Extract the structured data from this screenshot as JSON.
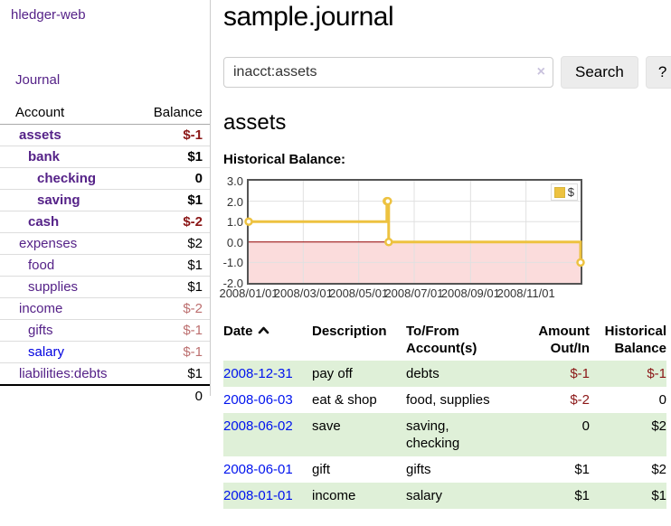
{
  "app": {
    "brand": "hledger-web",
    "nav_journal": "Journal"
  },
  "colors": {
    "link_purple": "#552288",
    "link_blue": "#0000e0",
    "negative_strong": "#8b1717",
    "negative_soft": "#bc6f6f",
    "stripe_green": "#dff0d8",
    "series_gold": "#edc240"
  },
  "sidebar": {
    "columns": {
      "account": "Account",
      "balance": "Balance"
    },
    "accounts": [
      {
        "name": "assets",
        "indent": 1,
        "bold": true,
        "balance": "$-1",
        "balance_style": "neg-strong",
        "link": "purple"
      },
      {
        "name": "bank",
        "indent": 2,
        "bold": true,
        "balance": "$1",
        "balance_style": "pos",
        "link": "purple"
      },
      {
        "name": "checking",
        "indent": 3,
        "bold": true,
        "balance": "0",
        "balance_style": "pos",
        "link": "purple"
      },
      {
        "name": "saving",
        "indent": 3,
        "bold": true,
        "balance": "$1",
        "balance_style": "pos",
        "link": "purple"
      },
      {
        "name": "cash",
        "indent": 2,
        "bold": true,
        "balance": "$-2",
        "balance_style": "neg-strong",
        "link": "purple"
      },
      {
        "name": "expenses",
        "indent": 1,
        "bold": false,
        "balance": "$2",
        "balance_style": "pos",
        "link": "purple"
      },
      {
        "name": "food",
        "indent": 2,
        "bold": false,
        "balance": "$1",
        "balance_style": "pos",
        "link": "purple"
      },
      {
        "name": "supplies",
        "indent": 2,
        "bold": false,
        "balance": "$1",
        "balance_style": "pos",
        "link": "purple"
      },
      {
        "name": "income",
        "indent": 1,
        "bold": false,
        "balance": "$-2",
        "balance_style": "neg-soft",
        "link": "purple"
      },
      {
        "name": "gifts",
        "indent": 2,
        "bold": false,
        "balance": "$-1",
        "balance_style": "neg-soft",
        "link": "purple"
      },
      {
        "name": "salary",
        "indent": 2,
        "bold": false,
        "balance": "$-1",
        "balance_style": "neg-soft",
        "link": "blue"
      },
      {
        "name": "liabilities:debts",
        "indent": 1,
        "bold": false,
        "balance": "$1",
        "balance_style": "pos",
        "link": "purple"
      }
    ],
    "total": "0"
  },
  "header": {
    "title": "sample.journal"
  },
  "search": {
    "value": "inacct:assets",
    "clear_icon": "×",
    "button": "Search",
    "help_button": "?"
  },
  "account_page": {
    "heading": "assets",
    "chart_label": "Historical Balance:"
  },
  "chart_data": {
    "type": "line",
    "title": "Historical Balance:",
    "step": true,
    "series": [
      {
        "name": "$",
        "color": "#edc240",
        "points": [
          [
            "2008-01-01",
            1
          ],
          [
            "2008-06-01",
            2
          ],
          [
            "2008-06-02",
            2
          ],
          [
            "2008-06-03",
            0
          ],
          [
            "2008-12-31",
            -1
          ]
        ]
      }
    ],
    "xlim": [
      "2008-01-01",
      "2008-12-31"
    ],
    "ylim": [
      -2,
      3
    ],
    "x_ticks": [
      "2008/01/01",
      "2008/03/01",
      "2008/05/01",
      "2008/07/01",
      "2008/09/01",
      "2008/11/01"
    ],
    "y_ticks": [
      "3.0",
      "2.0",
      "1.0",
      "0.0",
      "-1.0",
      "-2.0"
    ],
    "grid": true,
    "negative_region_color": "#fbdcdc",
    "zero_line_color": "#990000",
    "legend": {
      "label": "$",
      "position": "top-right"
    }
  },
  "register": {
    "columns": [
      "Date",
      "Description",
      "To/From Account(s)",
      "Amount Out/In",
      "Historical Balance"
    ],
    "sort": {
      "column": "Date",
      "direction": "ascending"
    },
    "rows": [
      {
        "date": "2008-12-31",
        "description": "pay off",
        "accounts": [
          "debts"
        ],
        "amount": "$-1",
        "amount_neg": true,
        "balance": "$-1",
        "balance_neg": true
      },
      {
        "date": "2008-06-03",
        "description": "eat & shop",
        "accounts": [
          "food, supplies"
        ],
        "amount": "$-2",
        "amount_neg": true,
        "balance": "0",
        "balance_neg": false
      },
      {
        "date": "2008-06-02",
        "description": "save",
        "accounts": [
          "saving,",
          "checking"
        ],
        "amount": "0",
        "amount_neg": false,
        "balance": "$2",
        "balance_neg": false
      },
      {
        "date": "2008-06-01",
        "description": "gift",
        "accounts": [
          "gifts"
        ],
        "amount": "$1",
        "amount_neg": false,
        "balance": "$2",
        "balance_neg": false
      },
      {
        "date": "2008-01-01",
        "description": "income",
        "accounts": [
          "salary"
        ],
        "amount": "$1",
        "amount_neg": false,
        "balance": "$1",
        "balance_neg": false
      }
    ]
  }
}
